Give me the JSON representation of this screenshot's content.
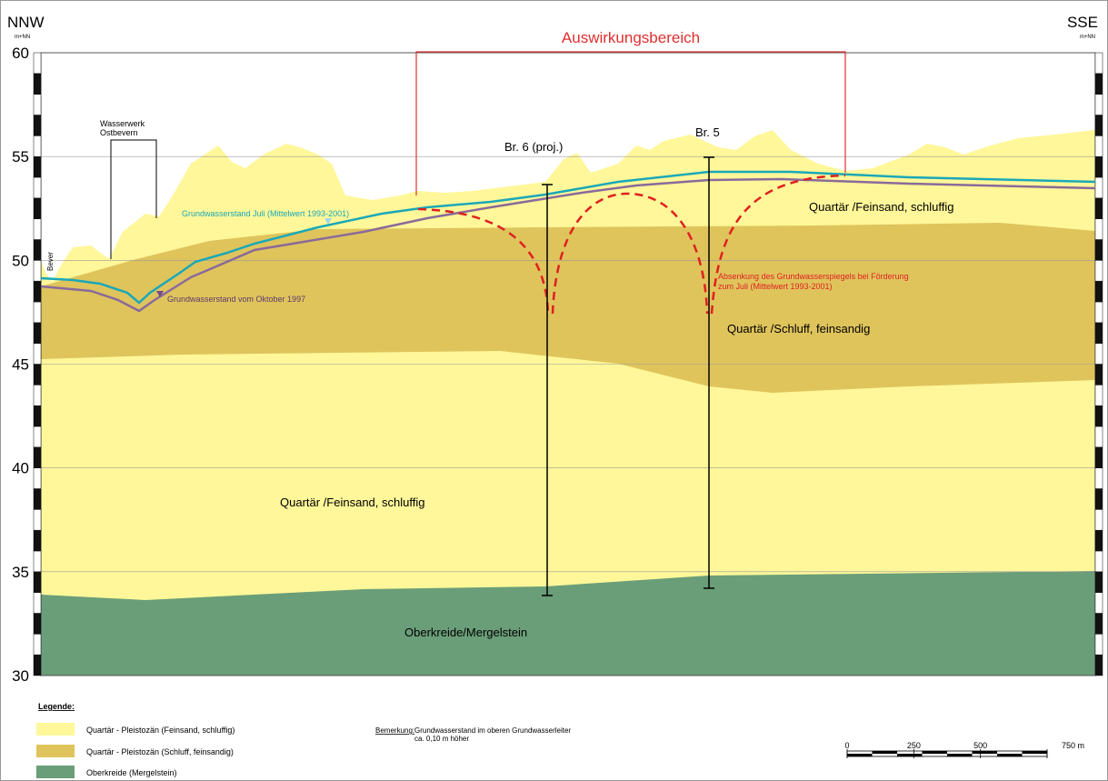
{
  "header": {
    "left_direction": "NNW",
    "left_unit": "m+NN",
    "right_direction": "SSE",
    "right_unit": "m+NN",
    "zone": "Auswirkungsbereich"
  },
  "yaxis": {
    "ticks": [
      30,
      35,
      40,
      45,
      50,
      55,
      60
    ]
  },
  "labels": {
    "waterworks": [
      "Wasserwerk",
      "Ostbevern"
    ],
    "river": "Bever",
    "borehole_6": "Br. 6 (proj.)",
    "borehole_5": "Br. 5",
    "gw_july": "Grundwasserstand Juli (Mittelwert 1993-2001)",
    "gw_october": "Grundwasserstand vom Oktober 1997",
    "drawdown": [
      "Absenkung des Grundwasserspiegels bei Förderung",
      "zum Juli (Mittelwert 1993-2001)"
    ],
    "layer_upper": "Quartär /Feinsand, schluffig",
    "layer_middle": "Quartär /Schluff, feinsandig",
    "layer_lower": "Quartär /Feinsand, schluffig",
    "layer_base": "Oberkreide/Mergelstein"
  },
  "legend": {
    "title": "Legende:",
    "items": [
      "Quartär - Pleistozän (Feinsand, schluffig)",
      "Quartär - Pleistozän (Schluff, feinsandig)",
      "Oberkreide (Mergelstein)"
    ]
  },
  "remark": {
    "label": "Bemerkung:",
    "lines": [
      "Grundwasserstand im oberen Grundwasserleiter",
      "ca. 0,10 m höher"
    ]
  },
  "scale_bar": {
    "ticks": [
      0,
      250,
      500,
      {
        "value": 750,
        "label": "750 m"
      }
    ]
  }
}
